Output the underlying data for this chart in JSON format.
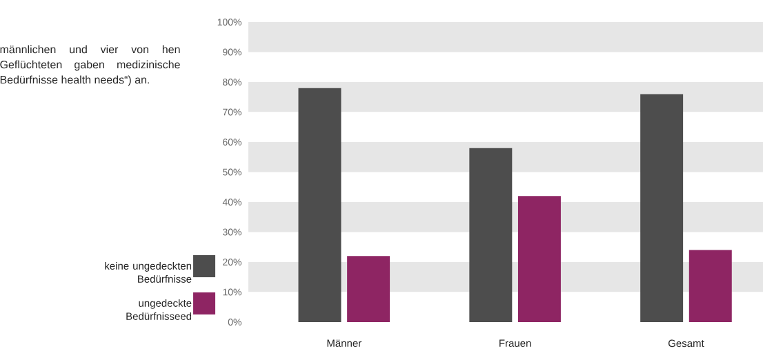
{
  "chart_data": {
    "type": "bar",
    "categories": [
      "Männer",
      "Frauen",
      "Gesamt"
    ],
    "series": [
      {
        "name": "keine ungedeckten Bedürfnisse",
        "color": "#4d4d4d",
        "values": [
          78,
          58,
          76
        ]
      },
      {
        "name": "ungedeckte Bedürfnisseed",
        "color": "#8e2563",
        "values": [
          22,
          42,
          24
        ]
      }
    ],
    "ylim": [
      0,
      100
    ],
    "yticks": [
      {
        "value": 0,
        "label": "0%"
      },
      {
        "value": 10,
        "label": "10%"
      },
      {
        "value": 20,
        "label": "20%"
      },
      {
        "value": 30,
        "label": "30%"
      },
      {
        "value": 40,
        "label": "40%"
      },
      {
        "value": 50,
        "label": "50%"
      },
      {
        "value": 60,
        "label": "60%"
      },
      {
        "value": 70,
        "label": "70%"
      },
      {
        "value": 80,
        "label": "80%"
      },
      {
        "value": 90,
        "label": "90%"
      },
      {
        "value": 100,
        "label": "100%"
      }
    ],
    "bands": [
      {
        "axis": "y",
        "from": 10,
        "to": 20,
        "color": "#e6e6e6"
      },
      {
        "axis": "y",
        "from": 30,
        "to": 40,
        "color": "#e6e6e6"
      },
      {
        "axis": "y",
        "from": 50,
        "to": 60,
        "color": "#e6e6e6"
      },
      {
        "axis": "y",
        "from": 70,
        "to": 80,
        "color": "#e6e6e6"
      },
      {
        "axis": "y",
        "from": 90,
        "to": 100,
        "color": "#e6e6e6"
      }
    ],
    "legend": "left",
    "grid": false,
    "annotations": [
      "männlichen und vier von hen Geflüchteten gaben medizinische Bedürfnisse health needs“) an."
    ]
  }
}
